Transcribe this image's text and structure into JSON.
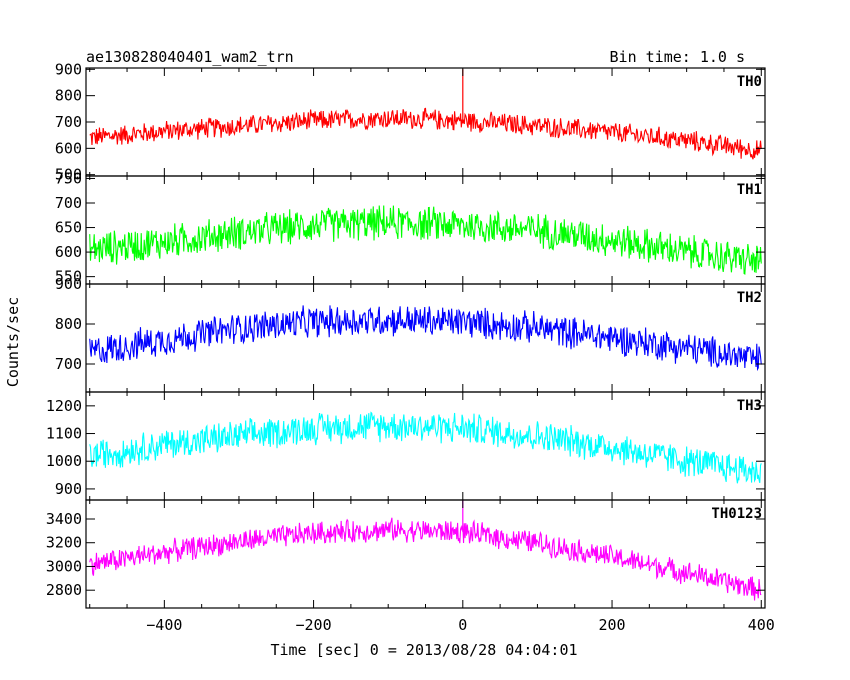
{
  "header": {
    "title": "ae130828040401_wam2_trn",
    "bin_time": "Bin time: 1.0 s"
  },
  "axes": {
    "ylabel": "Counts/sec",
    "xlabel": "Time [sec] 0 = 2013/08/28 04:04:01"
  },
  "chart_data": {
    "type": "line",
    "title": "ae130828040401_wam2_trn",
    "xlabel": "Time [sec] 0 = 2013/08/28 04:04:01",
    "ylabel": "Counts/sec",
    "xlim": [
      -505,
      405
    ],
    "x_ticks": [
      -400,
      -200,
      0,
      200,
      400
    ],
    "bin_time_s": 1.0,
    "panels": [
      {
        "name": "TH0",
        "color": "#ff0000",
        "ylim": [
          495,
          905
        ],
        "y_ticks": [
          500,
          600,
          700,
          800,
          900
        ],
        "series": {
          "x": [
            -500,
            -400,
            -300,
            -200,
            -100,
            0,
            100,
            200,
            300,
            400
          ],
          "mean": [
            640,
            665,
            685,
            705,
            715,
            705,
            685,
            660,
            630,
            590
          ],
          "noise_halfwidth": 45
        },
        "spike": {
          "x": 0,
          "y": 900
        }
      },
      {
        "name": "TH1",
        "color": "#00ff00",
        "ylim": [
          535,
          755
        ],
        "y_ticks": [
          550,
          600,
          650,
          700,
          750
        ],
        "series": {
          "x": [
            -500,
            -400,
            -300,
            -200,
            -100,
            0,
            100,
            200,
            300,
            400
          ],
          "mean": [
            605,
            620,
            640,
            655,
            660,
            655,
            645,
            625,
            600,
            580
          ],
          "noise_halfwidth": 40
        }
      },
      {
        "name": "TH2",
        "color": "#0000ff",
        "ylim": [
          630,
          900
        ],
        "y_ticks": [
          700,
          800,
          900
        ],
        "series": {
          "x": [
            -500,
            -400,
            -300,
            -200,
            -100,
            0,
            100,
            200,
            300,
            400
          ],
          "mean": [
            730,
            760,
            790,
            805,
            810,
            805,
            790,
            765,
            740,
            710
          ],
          "noise_halfwidth": 45
        }
      },
      {
        "name": "TH3",
        "color": "#00ffff",
        "ylim": [
          860,
          1250
        ],
        "y_ticks": [
          900,
          1000,
          1100,
          1200
        ],
        "series": {
          "x": [
            -500,
            -400,
            -300,
            -200,
            -100,
            0,
            100,
            200,
            300,
            400
          ],
          "mean": [
            1020,
            1060,
            1090,
            1120,
            1130,
            1120,
            1090,
            1050,
            1000,
            960
          ],
          "noise_halfwidth": 65
        }
      },
      {
        "name": "TH0123",
        "color": "#ff00ff",
        "ylim": [
          2650,
          3560
        ],
        "y_ticks": [
          2800,
          3000,
          3200,
          3400
        ],
        "series": {
          "x": [
            -500,
            -400,
            -300,
            -200,
            -100,
            0,
            100,
            200,
            300,
            400
          ],
          "mean": [
            3020,
            3120,
            3210,
            3280,
            3310,
            3290,
            3200,
            3080,
            2950,
            2800
          ],
          "noise_halfwidth": 110
        },
        "spike": {
          "x": 0,
          "y": 3560
        }
      }
    ]
  }
}
